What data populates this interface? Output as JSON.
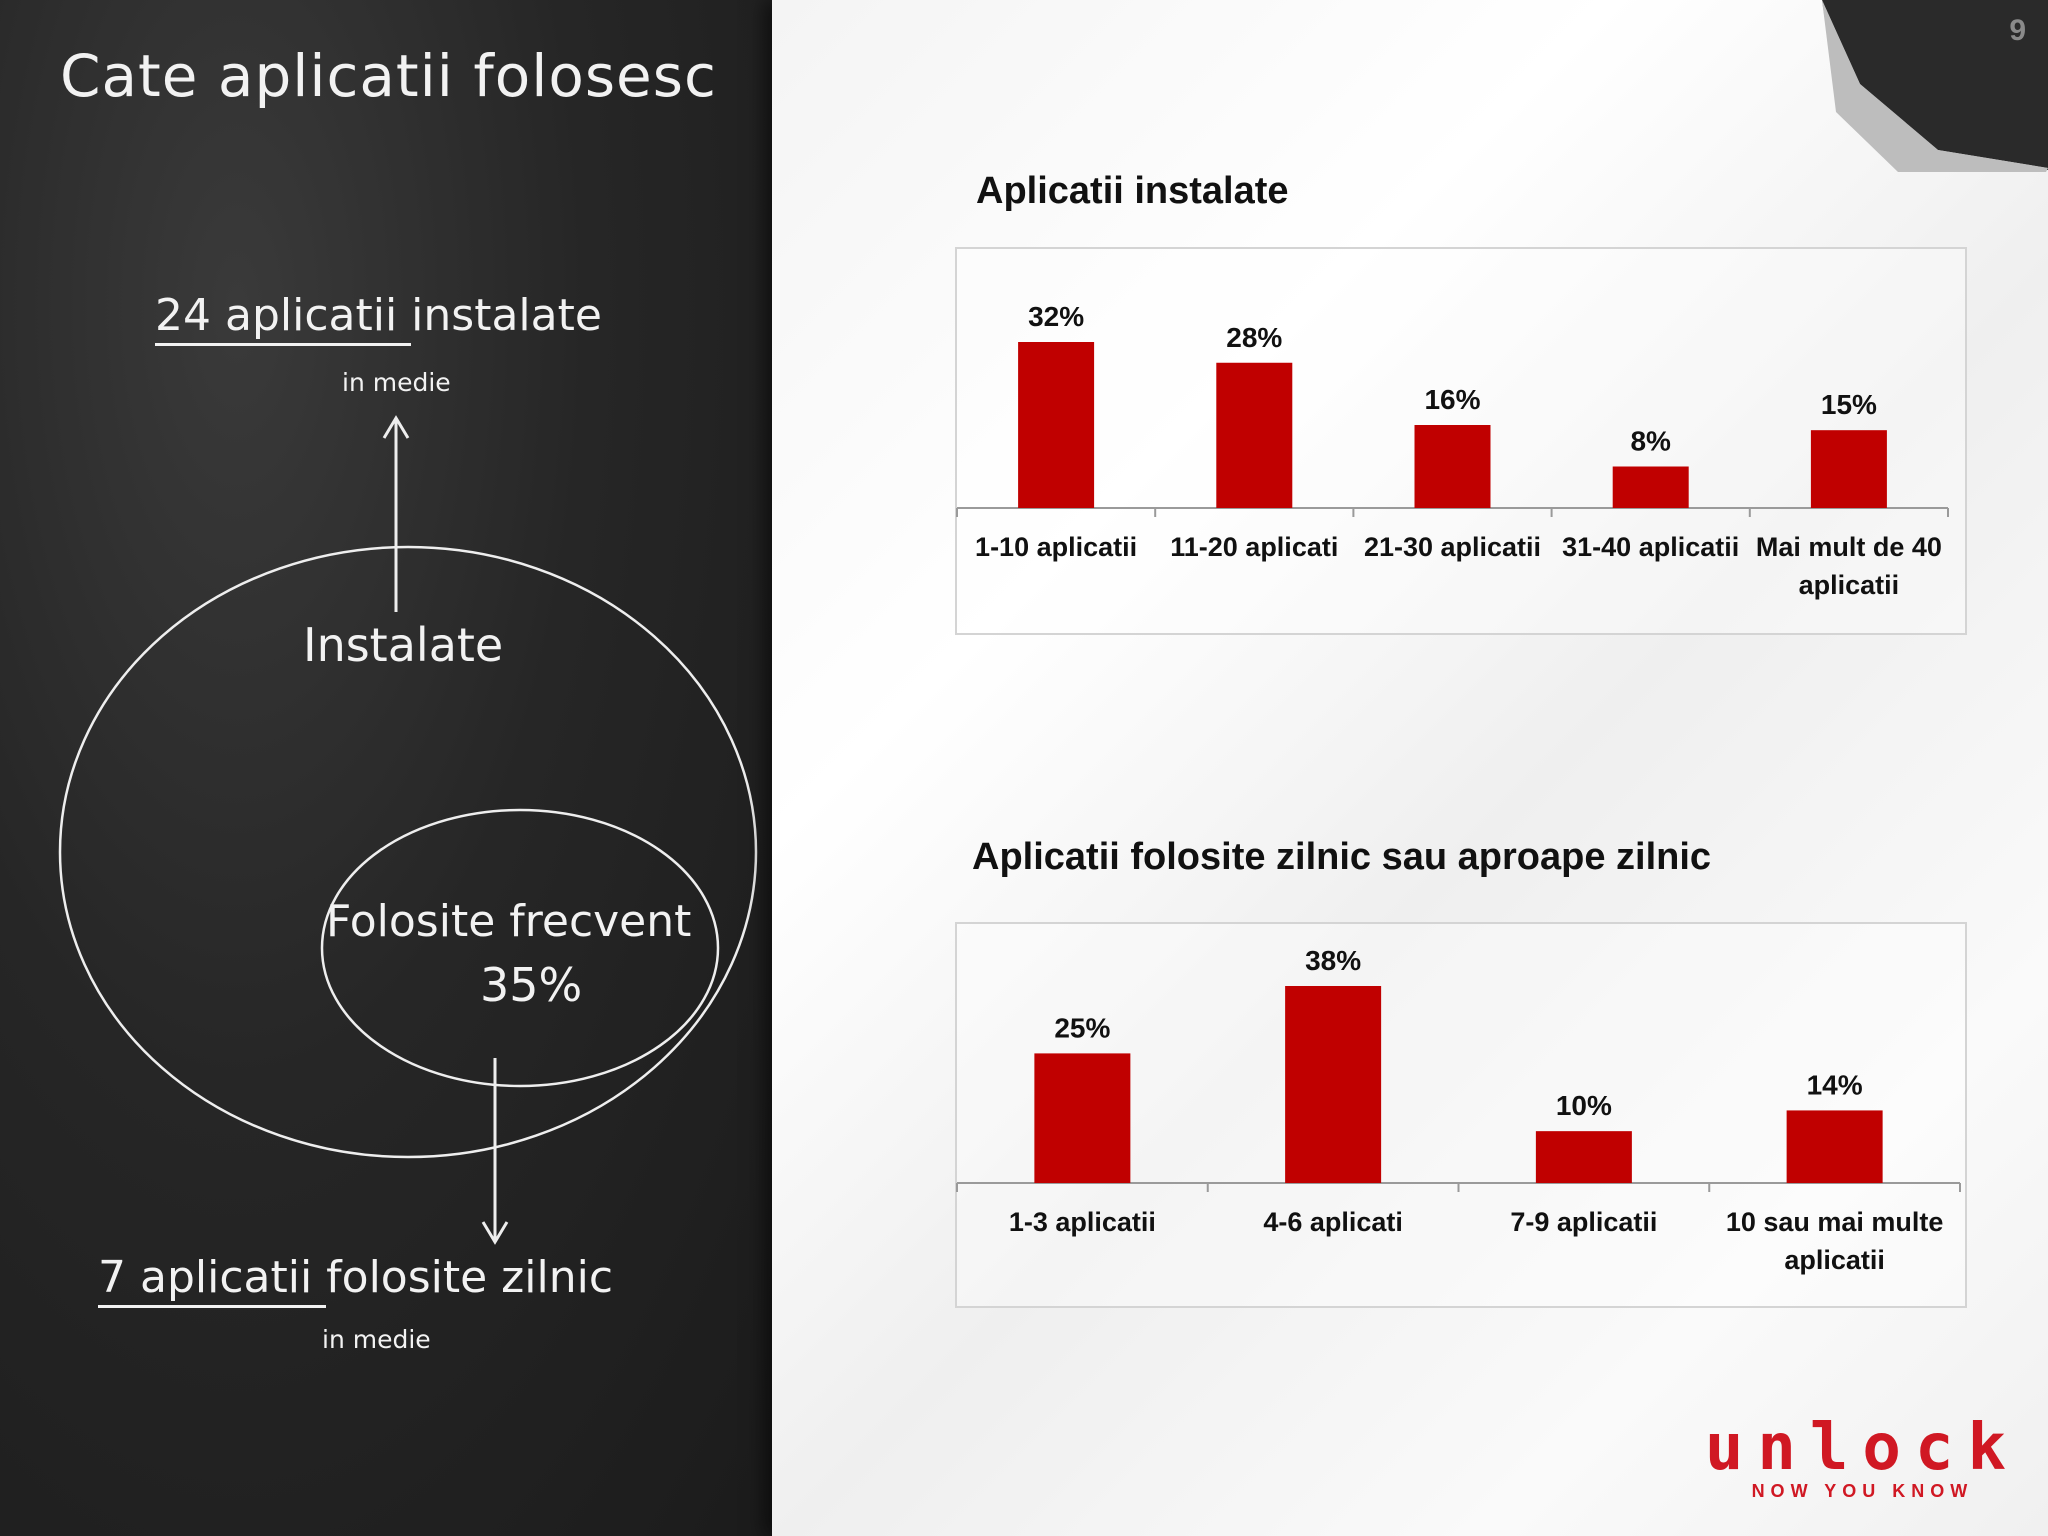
{
  "slide": {
    "title": "Cate aplicatii folosesc",
    "page_number": "9"
  },
  "board": {
    "stat_installed": {
      "highlight": "24 aplicatii ",
      "rest": "instalate",
      "sub": "in medie"
    },
    "stat_daily": {
      "highlight": "7 aplicatii ",
      "rest": "folosite zilnic",
      "sub": "in medie"
    },
    "venn_outer_label": "Instalate",
    "venn_inner_label": "Folosite frecvent",
    "venn_inner_pct": "35%"
  },
  "logo": {
    "word": "unlock",
    "tagline": "NOW YOU KNOW",
    "color": "#d01823"
  },
  "chart_data": [
    {
      "type": "bar",
      "title": "Aplicatii instalate",
      "categories": [
        "1-10 aplicatii",
        "11-20 aplicati",
        "21-30 aplicatii",
        "31-40 aplicatii",
        "Mai mult de 40 aplicatii"
      ],
      "category_lines": [
        [
          "1-10 aplicatii"
        ],
        [
          "11-20 aplicati"
        ],
        [
          "21-30 aplicatii"
        ],
        [
          "31-40 aplicatii"
        ],
        [
          "Mai mult de 40",
          "aplicatii"
        ]
      ],
      "values": [
        32,
        28,
        16,
        8,
        15
      ],
      "data_labels": [
        "32%",
        "28%",
        "16%",
        "8%",
        "15%"
      ],
      "unit": "%",
      "bar_color": "#c00000",
      "grid": false,
      "legend": "none"
    },
    {
      "type": "bar",
      "title": "Aplicatii folosite zilnic sau aproape zilnic",
      "categories": [
        "1-3 aplicatii",
        "4-6 aplicati",
        "7-9 aplicatii",
        "10 sau mai multe aplicatii"
      ],
      "category_lines": [
        [
          "1-3 aplicatii"
        ],
        [
          "4-6 aplicati"
        ],
        [
          "7-9 aplicatii"
        ],
        [
          "10 sau mai multe",
          "aplicatii"
        ]
      ],
      "values": [
        25,
        38,
        10,
        14
      ],
      "data_labels": [
        "25%",
        "38%",
        "10%",
        "14%"
      ],
      "unit": "%",
      "bar_color": "#c00000",
      "grid": false,
      "legend": "none"
    }
  ]
}
